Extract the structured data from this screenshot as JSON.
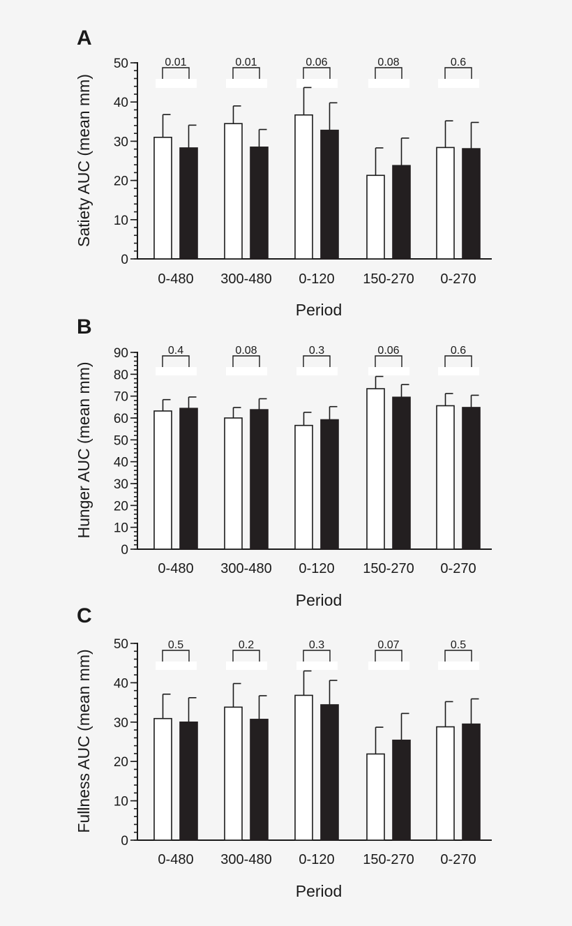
{
  "colors": {
    "background": "#f5f5f5",
    "open_bar": "#ffffff",
    "filled_bar": "#231f20",
    "ink": "#1a1a1a"
  },
  "chart_data": [
    {
      "panel": "A",
      "type": "bar",
      "xlabel": "Period",
      "ylabel": "Satiety AUC (mean mm)",
      "ylim": [
        0,
        50
      ],
      "major_ticks": [
        0,
        10,
        20,
        30,
        40,
        50
      ],
      "minor_tick_step": 2,
      "categories": [
        "0-480",
        "300-480",
        "0-120",
        "150-270",
        "0-270"
      ],
      "series": [
        {
          "name": "open",
          "style": "open",
          "values": [
            31,
            34.5,
            36.7,
            21.3,
            28.4
          ],
          "errors": [
            5.8,
            4.5,
            7.0,
            7.0,
            6.8
          ]
        },
        {
          "name": "filled",
          "style": "filled",
          "values": [
            28.3,
            28.5,
            32.8,
            23.8,
            28.1
          ],
          "errors": [
            5.8,
            4.5,
            7.0,
            7.0,
            6.7
          ]
        }
      ],
      "p_values": [
        "0.01",
        "0.01",
        "0.06",
        "0.08",
        "0.6"
      ]
    },
    {
      "panel": "B",
      "type": "bar",
      "xlabel": "Period",
      "ylabel": "Hunger AUC (mean mm)",
      "ylim": [
        0,
        90
      ],
      "major_ticks": [
        0,
        10,
        20,
        30,
        40,
        50,
        60,
        70,
        80,
        90
      ],
      "minor_tick_step": 2,
      "categories": [
        "0-480",
        "300-480",
        "0-120",
        "150-270",
        "0-270"
      ],
      "series": [
        {
          "name": "open",
          "style": "open",
          "values": [
            63.2,
            60,
            56.6,
            73.4,
            65.6
          ],
          "errors": [
            5.2,
            4.8,
            6.0,
            5.6,
            5.6
          ]
        },
        {
          "name": "filled",
          "style": "filled",
          "values": [
            64.4,
            63.8,
            59.2,
            69.5,
            64.8
          ],
          "errors": [
            5.2,
            5.0,
            6.0,
            5.8,
            5.6
          ]
        }
      ],
      "p_values": [
        "0.4",
        "0.08",
        "0.3",
        "0.06",
        "0.6"
      ]
    },
    {
      "panel": "C",
      "type": "bar",
      "xlabel": "Period",
      "ylabel": "Fullness AUC (mean mm)",
      "ylim": [
        0,
        50
      ],
      "major_ticks": [
        0,
        10,
        20,
        30,
        40,
        50
      ],
      "minor_tick_step": 2,
      "categories": [
        "0-480",
        "300-480",
        "0-120",
        "150-270",
        "0-270"
      ],
      "series": [
        {
          "name": "open",
          "style": "open",
          "values": [
            30.9,
            33.8,
            36.8,
            21.9,
            28.8
          ],
          "errors": [
            6.2,
            6.0,
            6.2,
            6.8,
            6.4
          ]
        },
        {
          "name": "filled",
          "style": "filled",
          "values": [
            30,
            30.7,
            34.4,
            25.4,
            29.5
          ],
          "errors": [
            6.2,
            6.0,
            6.2,
            6.8,
            6.4
          ]
        }
      ],
      "p_values": [
        "0.5",
        "0.2",
        "0.3",
        "0.07",
        "0.5"
      ]
    }
  ]
}
